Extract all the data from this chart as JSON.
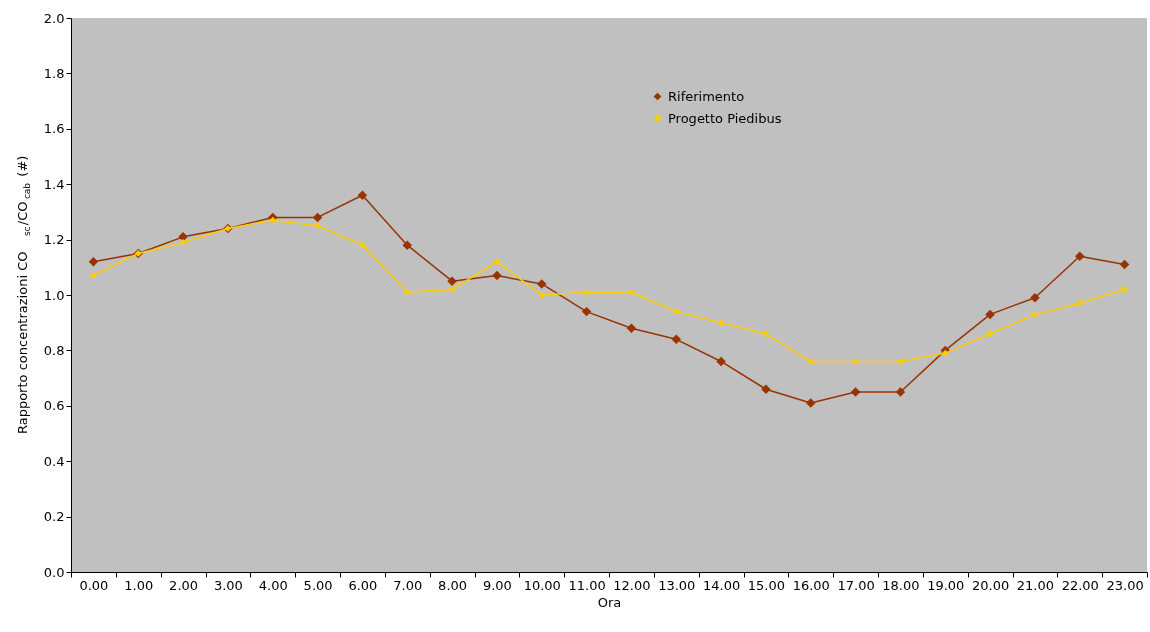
{
  "chart_data": {
    "type": "line",
    "xlabel": "Ora",
    "ylabel": "Rapporto concentrazioni CO$_{sc}$/CO$_{cab}$ (#)",
    "categories": [
      "0.00",
      "1.00",
      "2.00",
      "3.00",
      "4.00",
      "5.00",
      "6.00",
      "7.00",
      "8.00",
      "9.00",
      "10.00",
      "11.00",
      "12.00",
      "13.00",
      "14.00",
      "15.00",
      "16.00",
      "17.00",
      "18.00",
      "19.00",
      "20.00",
      "21.00",
      "22.00",
      "23.00"
    ],
    "series": [
      {
        "name": "Riferimento",
        "color": "#993300",
        "values": [
          1.12,
          1.15,
          1.21,
          1.24,
          1.28,
          1.28,
          1.36,
          1.18,
          1.05,
          1.07,
          1.04,
          0.94,
          0.88,
          0.84,
          0.76,
          0.66,
          0.61,
          0.65,
          0.65,
          0.8,
          0.93,
          0.99,
          1.14,
          1.11
        ]
      },
      {
        "name": "Progetto Piedibus",
        "color": "#ffcc00",
        "values": [
          1.07,
          1.15,
          1.19,
          1.24,
          1.27,
          1.25,
          1.18,
          1.01,
          1.02,
          1.12,
          1.0,
          1.01,
          1.01,
          0.94,
          0.9,
          0.86,
          0.76,
          0.76,
          0.76,
          0.79,
          0.86,
          0.93,
          0.97,
          1.02
        ]
      }
    ],
    "ylim": [
      0,
      2.0
    ],
    "yticks": [
      {
        "value": 0,
        "label": "0.0"
      },
      {
        "value": 0.2,
        "label": "0.2"
      },
      {
        "value": 0.4,
        "label": "0.4"
      },
      {
        "value": 0.6,
        "label": "0.6"
      },
      {
        "value": 0.8,
        "label": "0.8"
      },
      {
        "value": 1.0,
        "label": "1.0"
      },
      {
        "value": 1.2,
        "label": "1.2"
      },
      {
        "value": 1.4,
        "label": "1.4"
      },
      {
        "value": 1.6,
        "label": "1.6"
      },
      {
        "value": 1.8,
        "label": "1.8"
      },
      {
        "value": 2.0,
        "label": "2.0"
      }
    ],
    "grid": false,
    "legend": "top right",
    "marker": "diamond",
    "line_style": "solid"
  }
}
